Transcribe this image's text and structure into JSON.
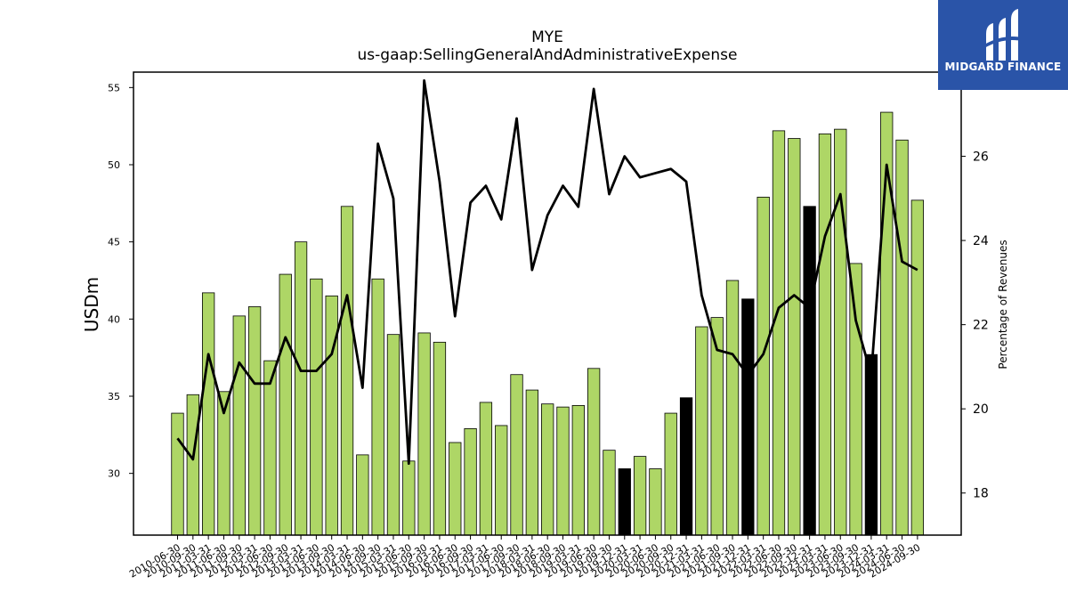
{
  "chart_data": {
    "type": "bar+line",
    "title": "MYE",
    "subtitle": "us-gaap:SellingGeneralAndAdministrativeExpense",
    "ylabel": "USDm",
    "y2label": "Percentage of Revenues",
    "ylim": [
      26,
      56
    ],
    "y2lim": [
      17,
      28
    ],
    "yticks": [
      30,
      35,
      40,
      45,
      50,
      55
    ],
    "y2ticks": [
      18,
      20,
      22,
      24,
      26
    ],
    "categories": [
      "2010-06-30",
      "2010-09-30",
      "2011-03-31",
      "2011-06-30",
      "2011-09-30",
      "2012-03-31",
      "2012-06-30",
      "2012-09-30",
      "2013-03-31",
      "2013-06-30",
      "2013-09-30",
      "2014-03-31",
      "2014-06-30",
      "2014-09-30",
      "2015-03-31",
      "2015-06-30",
      "2015-09-30",
      "2016-03-31",
      "2016-06-30",
      "2016-09-30",
      "2017-03-31",
      "2017-06-30",
      "2017-09-30",
      "2018-03-31",
      "2018-06-30",
      "2018-09-30",
      "2019-03-31",
      "2019-06-30",
      "2019-09-30",
      "2019-12-31",
      "2020-03-31",
      "2020-06-30",
      "2020-09-30",
      "2020-12-31",
      "2021-03-31",
      "2021-06-30",
      "2021-09-30",
      "2021-12-31",
      "2022-03-31",
      "2022-06-30",
      "2022-09-30",
      "2022-12-31",
      "2023-03-31",
      "2023-06-30",
      "2023-09-30",
      "2023-12-31",
      "2024-03-31",
      "2024-06-30",
      "2024-09-30"
    ],
    "series": [
      {
        "type": "bar",
        "values": [
          33.9,
          35.1,
          41.7,
          35.3,
          40.2,
          40.8,
          37.3,
          42.9,
          45.0,
          42.6,
          41.5,
          47.3,
          31.2,
          42.6,
          39.0,
          30.8,
          39.1,
          38.5,
          32.0,
          32.9,
          34.6,
          33.1,
          36.4,
          35.4,
          34.5,
          34.3,
          34.4,
          36.8,
          31.5,
          30.3,
          31.1,
          30.3,
          33.9,
          34.9,
          39.5,
          40.1,
          42.5,
          41.3,
          47.9,
          52.2,
          51.7,
          47.3,
          52.0,
          52.3,
          43.6,
          37.7,
          53.4,
          51.6,
          47.7
        ],
        "highlight": [
          false,
          false,
          false,
          false,
          false,
          false,
          false,
          false,
          false,
          false,
          false,
          false,
          false,
          false,
          false,
          false,
          false,
          false,
          false,
          false,
          false,
          false,
          false,
          false,
          false,
          false,
          false,
          false,
          false,
          true,
          false,
          false,
          false,
          true,
          false,
          false,
          false,
          true,
          false,
          false,
          false,
          true,
          false,
          false,
          false,
          true,
          false,
          false,
          false
        ]
      },
      {
        "type": "line",
        "axis": "right",
        "values": [
          19.3,
          18.8,
          21.3,
          19.9,
          21.1,
          20.6,
          20.6,
          21.7,
          20.9,
          20.9,
          21.3,
          22.7,
          20.5,
          26.3,
          25.0,
          18.7,
          27.8,
          25.4,
          22.2,
          24.9,
          25.3,
          24.5,
          26.9,
          23.3,
          24.6,
          25.3,
          24.8,
          27.6,
          25.1,
          26.0,
          25.5,
          25.6,
          25.7,
          25.4,
          22.7,
          21.4,
          21.3,
          20.8,
          21.3,
          22.4,
          22.7,
          22.4,
          24.1,
          25.1,
          22.1,
          20.8,
          25.8,
          23.5,
          23.3
        ]
      }
    ],
    "colors": {
      "bar": "#aed666",
      "bar_highlight": "#000000",
      "line": "#000000"
    }
  },
  "logo": {
    "text": "MIDGARD FINANCE",
    "background": "#2a54a8"
  }
}
